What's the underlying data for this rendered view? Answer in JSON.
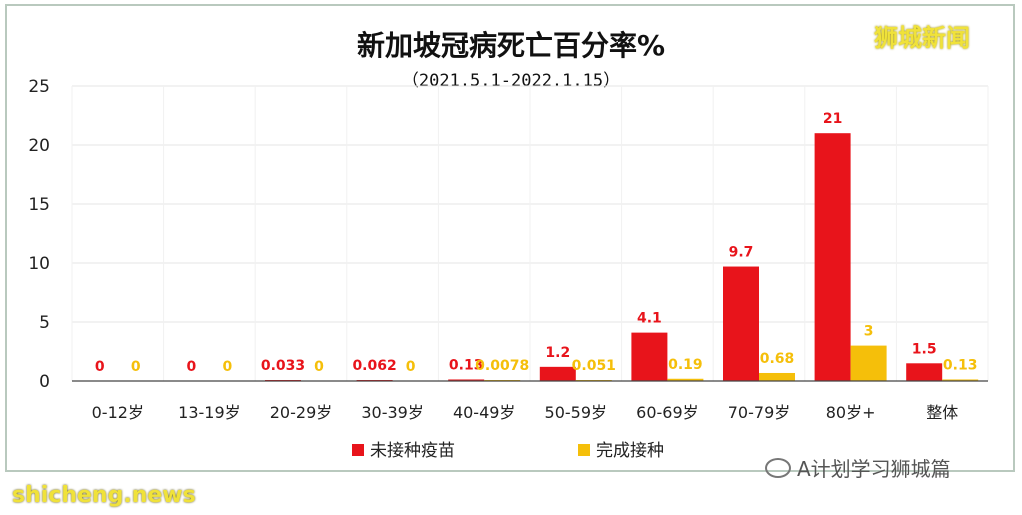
{
  "watermarks": {
    "brand": "狮城新闻",
    "wechat": "A计划学习狮城篇",
    "site": "shicheng.news"
  },
  "colors": {
    "unvaccinated": "#e8141b",
    "vaccinated": "#f5bf0a",
    "grid": "#e6e6e6",
    "axis": "#444444"
  },
  "chart_data": {
    "type": "bar",
    "title": "新加坡冠病死亡百分率%",
    "subtitle": "（2021.5.1-2022.1.15）",
    "categories": [
      "0-12岁",
      "13-19岁",
      "20-29岁",
      "30-39岁",
      "40-49岁",
      "50-59岁",
      "60-69岁",
      "70-79岁",
      "80岁+",
      "整体"
    ],
    "series": [
      {
        "name": "未接种疫苗",
        "values": [
          0,
          0,
          0.033,
          0.062,
          0.13,
          1.2,
          4.1,
          9.7,
          21,
          1.5
        ],
        "labels": [
          "0",
          "0",
          "0.033",
          "0.062",
          "0.13",
          "1.2",
          "4.1",
          "9.7",
          "21",
          "1.5"
        ]
      },
      {
        "name": "完成接种",
        "values": [
          0,
          0,
          0,
          0,
          0.0078,
          0.051,
          0.19,
          0.68,
          3,
          0.13
        ],
        "labels": [
          "0",
          "0",
          "0",
          "0",
          "0.0078",
          "0.051",
          "0.19",
          "0.68",
          "3",
          "0.13"
        ]
      }
    ],
    "y_ticks": [
      "0",
      "5",
      "10",
      "15",
      "20",
      "25"
    ],
    "ylim": [
      0,
      25
    ],
    "grid": true,
    "legend_position": "bottom-center"
  }
}
